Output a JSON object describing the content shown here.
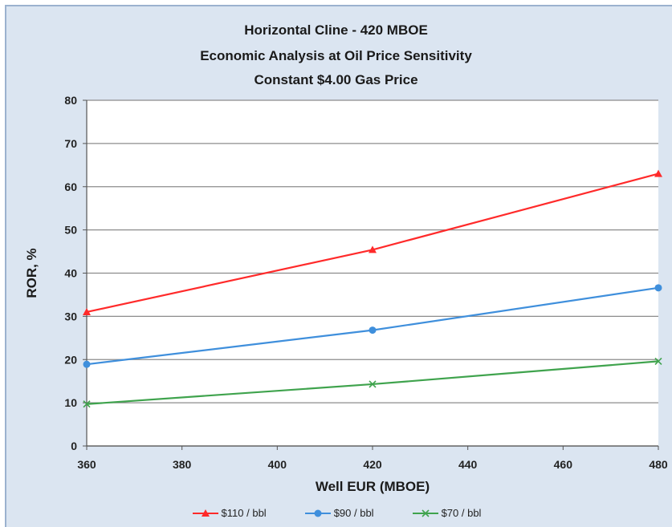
{
  "chart_data": {
    "type": "line",
    "title": [
      "Horizontal Cline - 420 MBOE",
      "Economic Analysis at Oil Price Sensitivity",
      "Constant $4.00 Gas Price"
    ],
    "xlabel": "Well EUR (MBOE)",
    "ylabel": "ROR, %",
    "xlim": [
      360,
      480
    ],
    "ylim": [
      0,
      80
    ],
    "x_ticks": [
      360,
      380,
      400,
      420,
      440,
      460,
      480
    ],
    "y_ticks": [
      0,
      10,
      20,
      30,
      40,
      50,
      60,
      70,
      80
    ],
    "grid": "horizontal",
    "legend_position": "bottom",
    "x": [
      360,
      420,
      480
    ],
    "series": [
      {
        "name": "$110 / bbl",
        "values": [
          31,
          45.4,
          63
        ],
        "color": "#ff2a2a",
        "marker": "triangle"
      },
      {
        "name": "$90 / bbl",
        "values": [
          18.9,
          26.8,
          36.6
        ],
        "color": "#3f8fdc",
        "marker": "circle"
      },
      {
        "name": "$70 / bbl",
        "values": [
          9.7,
          14.3,
          19.6
        ],
        "color": "#3fa34d",
        "marker": "x"
      }
    ]
  }
}
